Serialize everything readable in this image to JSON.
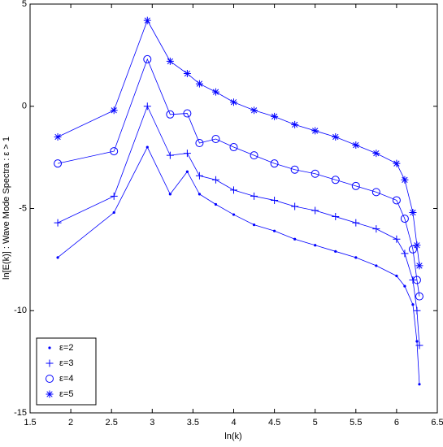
{
  "chart_data": {
    "type": "line",
    "xlabel": "ln(k)",
    "ylabel": "ln[E(k)] : Wave Mode Spectra : ε > 1",
    "x": [
      1.84,
      2.53,
      2.94,
      3.22,
      3.43,
      3.58,
      3.78,
      4.0,
      4.25,
      4.5,
      4.75,
      5.0,
      5.25,
      5.5,
      5.75,
      6.0,
      6.1,
      6.2,
      6.25,
      6.28
    ],
    "series": [
      {
        "name": "ε=2",
        "color": "#0000ff",
        "marker": "dot",
        "values": [
          -7.4,
          -5.2,
          -2,
          -4.3,
          -3.2,
          -4.3,
          -4.8,
          -5.3,
          -5.8,
          -6.1,
          -6.5,
          -6.8,
          -7.1,
          -7.4,
          -7.8,
          -8.3,
          -8.8,
          -9.7,
          -11.5,
          -13.6
        ]
      },
      {
        "name": "ε=3",
        "color": "#0000ff",
        "marker": "plus",
        "values": [
          -5.7,
          -4.4,
          0,
          -2.4,
          -2.3,
          -3.4,
          -3.6,
          -4.1,
          -4.4,
          -4.6,
          -4.9,
          -5.1,
          -5.4,
          -5.7,
          -6.0,
          -6.5,
          -7.2,
          -8.5,
          -10,
          -11.7
        ]
      },
      {
        "name": "ε=4",
        "color": "#0000ff",
        "marker": "circle",
        "values": [
          -2.8,
          -2.2,
          2.3,
          -0.4,
          -0.35,
          -1.8,
          -1.6,
          -2.0,
          -2.4,
          -2.8,
          -3.1,
          -3.3,
          -3.6,
          -3.9,
          -4.2,
          -4.6,
          -5.5,
          -7.0,
          -8.5,
          -9.3
        ]
      },
      {
        "name": "ε=5",
        "color": "#0000ff",
        "marker": "star",
        "values": [
          -1.5,
          -0.2,
          4.2,
          2.2,
          1.6,
          1.1,
          0.7,
          0.2,
          -0.2,
          -0.5,
          -0.9,
          -1.2,
          -1.5,
          -1.9,
          -2.3,
          -2.8,
          -3.6,
          -5.2,
          -6.8,
          -7.8
        ]
      }
    ],
    "xlim": [
      1.5,
      6.5
    ],
    "xticks": [
      1.5,
      2,
      2.5,
      3,
      3.5,
      4,
      4.5,
      5,
      5.5,
      6,
      6.5
    ],
    "ylim": [
      -15,
      5
    ],
    "yticks": [
      -15,
      -10,
      -5,
      0,
      5
    ],
    "grid": false,
    "legend": "lower left"
  }
}
